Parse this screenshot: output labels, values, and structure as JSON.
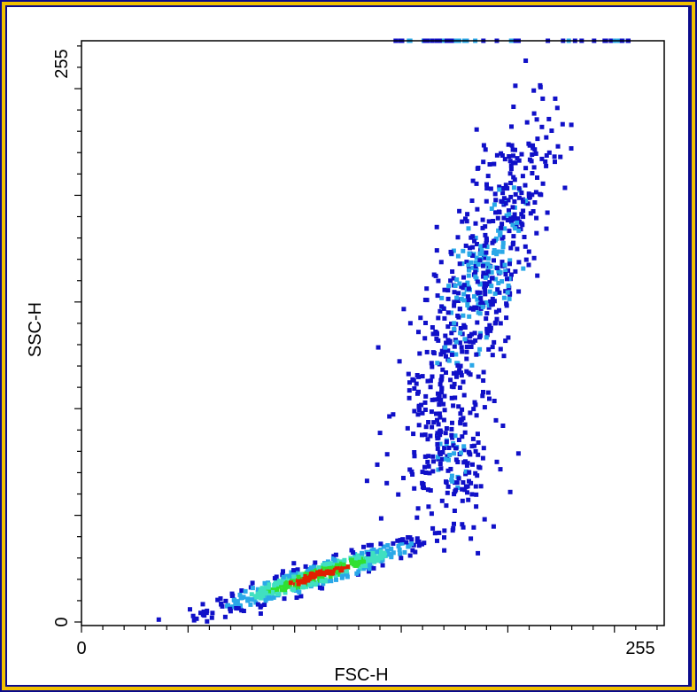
{
  "colors": {
    "border_outer": "#0a0a8c",
    "border_inner": "#f0c000",
    "density_low": "#1010c8",
    "density_mid": "#2aa8e8",
    "density_midhigh": "#40e0c0",
    "density_high": "#30e030",
    "density_max": "#e02000"
  },
  "chart_data": {
    "type": "scatter",
    "subtype": "density-dot-plot",
    "title": "",
    "xlabel": "FSC-H",
    "ylabel": "SSC-H",
    "xlim": [
      0,
      255
    ],
    "ylim": [
      0,
      255
    ],
    "x_ticks": [
      "0",
      "255"
    ],
    "y_ticks": [
      "0",
      "255"
    ],
    "grid": false,
    "legend": "none",
    "clusters": [
      {
        "population": 1,
        "center": [
          110,
          22
        ],
        "spread": [
          26,
          8
        ],
        "count": 520,
        "density": "high"
      },
      {
        "population": 2,
        "center": [
          172,
          75
        ],
        "spread": [
          14,
          22
        ],
        "count": 170,
        "density": "low"
      },
      {
        "population": 3,
        "center": [
          185,
          160
        ],
        "spread": [
          22,
          38
        ],
        "count": 640,
        "density": "mid"
      }
    ]
  }
}
